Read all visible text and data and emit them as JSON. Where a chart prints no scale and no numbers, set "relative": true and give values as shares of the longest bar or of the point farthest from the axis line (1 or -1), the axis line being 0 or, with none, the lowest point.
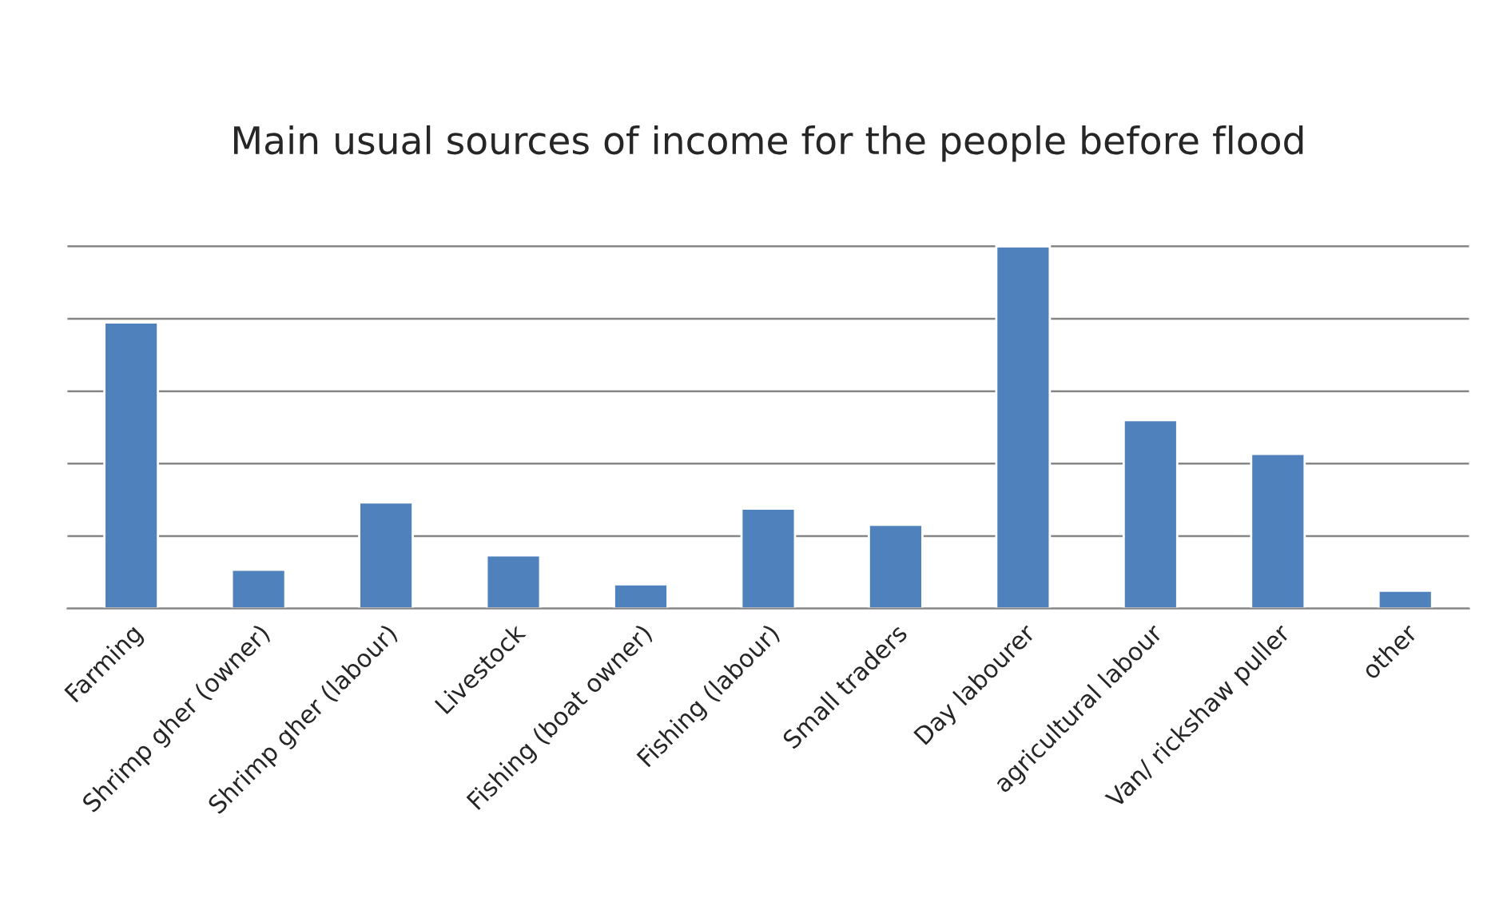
{
  "chart_data": {
    "type": "bar",
    "title": "Main usual sources of income for the people before flood",
    "categories": [
      "Farming",
      "Shrimp gher (owner)",
      "Shrimp gher (labour)",
      "Livestock",
      "Fishing (boat owner)",
      "Fishing (labour)",
      "Small traders",
      "Day labourer",
      "agricultural labour",
      "Van/ rickshaw puller",
      "other"
    ],
    "values": [
      0.79,
      0.107,
      0.293,
      0.147,
      0.067,
      0.276,
      0.231,
      1,
      0.52,
      0.427,
      0.049
    ],
    "color": "#4f81bd",
    "relative": true,
    "grid": "y"
  }
}
